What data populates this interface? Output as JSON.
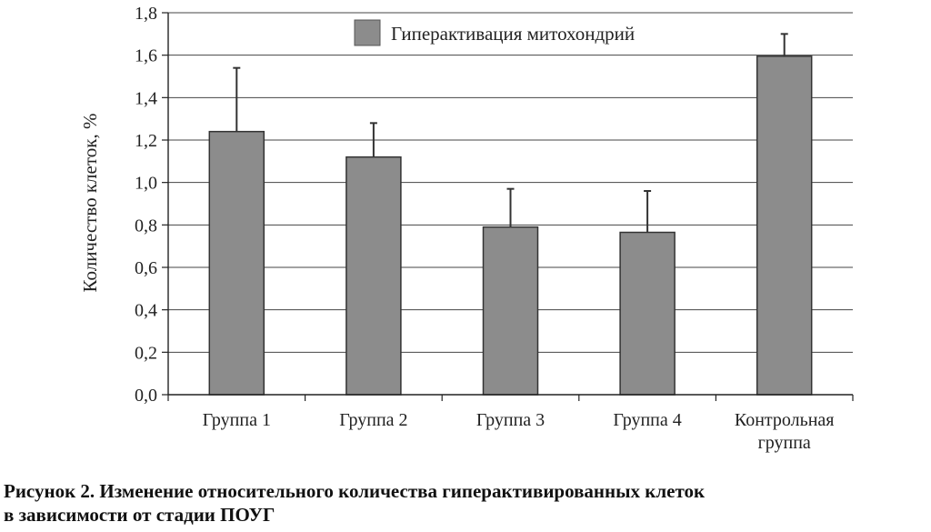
{
  "chart_data": {
    "type": "bar",
    "categories": [
      "Группа 1",
      "Группа 2",
      "Группа 3",
      "Группа 4",
      "Контрольная группа"
    ],
    "series": [
      {
        "name": "Гиперактивация митохондрий",
        "values": [
          1.24,
          1.12,
          0.79,
          0.765,
          1.595
        ],
        "error_plus": [
          0.3,
          0.16,
          0.18,
          0.195,
          0.105
        ],
        "color": "#8c8c8c"
      }
    ],
    "ylabel": "Количество клеток, %",
    "xlabel": "",
    "ylim": [
      0,
      1.8
    ],
    "yticks": [
      "0,0",
      "0,2",
      "0,4",
      "0,6",
      "0,8",
      "1,0",
      "1,2",
      "1,4",
      "1,6",
      "1,8"
    ],
    "grid": true,
    "legend": "top-center"
  },
  "caption": {
    "line1": "Рисунок 2. Изменение относительного количества гиперактивированных клеток",
    "line2": "в зависимости от стадии ПОУГ"
  }
}
